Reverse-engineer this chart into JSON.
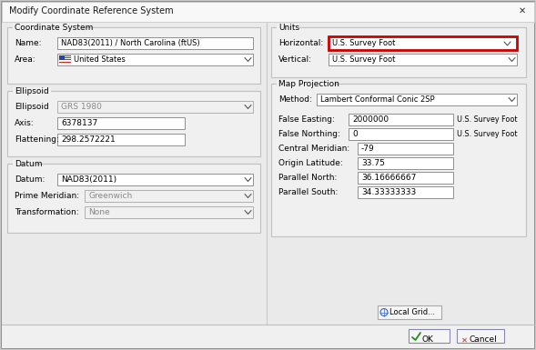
{
  "title": "Modify Coordinate Reference System",
  "outer_bg": "#c8c8c8",
  "dialog_bg": "#f0f0f0",
  "white": "#ffffff",
  "border_light": "#c0c0c0",
  "border_dark": "#888888",
  "text_color": "#000000",
  "text_disabled": "#888888",
  "field_disabled_bg": "#f0f0f0",
  "highlight_red": "#cc0000",
  "group_bg": "#f5f5f5",
  "left": {
    "coord_system": {
      "label": "Coordinate System",
      "name_label": "Name:",
      "name_value": "NAD83(2011) / North Carolina (ftUS)",
      "area_label": "Area:",
      "area_value": "United States"
    },
    "ellipsoid": {
      "label": "Ellipsoid",
      "ellipsoid_label": "Ellipsoid",
      "ellipsoid_value": "GRS 1980",
      "axis_label": "Axis:",
      "axis_value": "6378137",
      "flattening_label": "Flattening:",
      "flattening_value": "298.2572221"
    },
    "datum": {
      "label": "Datum",
      "datum_label": "Datum:",
      "datum_value": "NAD83(2011)",
      "prime_meridian_label": "Prime Meridian:",
      "prime_meridian_value": "Greenwich",
      "transformation_label": "Transformation:",
      "transformation_value": "None"
    }
  },
  "right": {
    "units": {
      "label": "Units",
      "horizontal_label": "Horizontal:",
      "horizontal_value": "U.S. Survey Foot",
      "vertical_label": "Vertical:",
      "vertical_value": "U.S. Survey Foot"
    },
    "map_projection": {
      "label": "Map Projection",
      "method_label": "Method:",
      "method_value": "Lambert Conformal Conic 2SP",
      "false_easting_label": "False Easting:",
      "false_easting_value": "2000000",
      "false_easting_unit": "U.S. Survey Foot",
      "false_northing_label": "False Northing:",
      "false_northing_value": "0",
      "false_northing_unit": "U.S. Survey Foot",
      "central_meridian_label": "Central Meridian:",
      "central_meridian_value": "-79",
      "origin_latitude_label": "Origin Latitude:",
      "origin_latitude_value": "33.75",
      "parallel_north_label": "Parallel North:",
      "parallel_north_value": "36.16666667",
      "parallel_south_label": "Parallel South:",
      "parallel_south_value": "34.33333333"
    }
  },
  "btn_local_grid": "Local Grid...",
  "btn_ok": "OK",
  "btn_cancel": "Cancel"
}
